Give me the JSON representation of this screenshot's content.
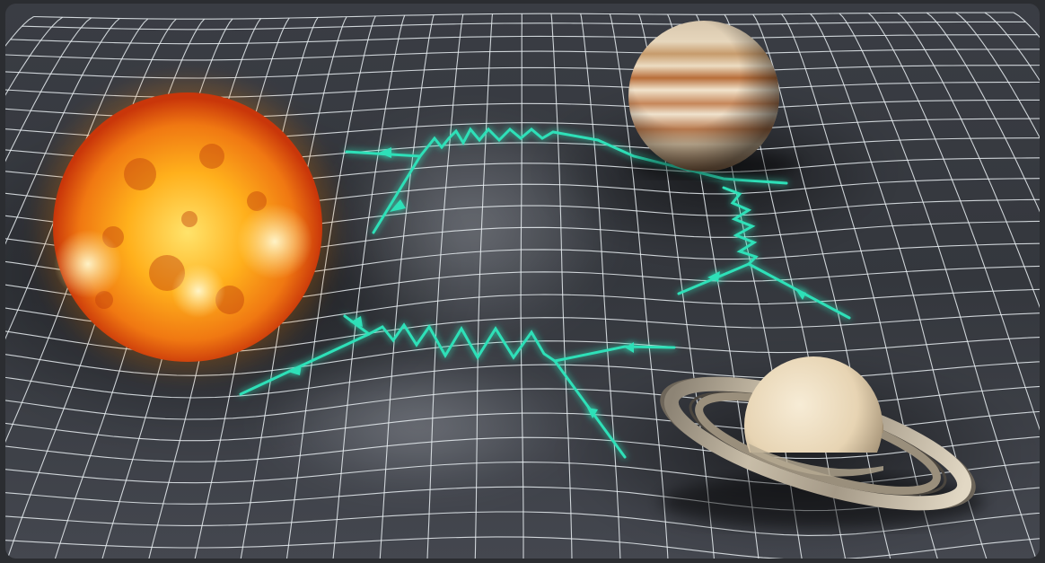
{
  "image": {
    "kind": "illustration",
    "subjects": [
      "sun",
      "jupiter",
      "saturn",
      "spacetime-grid",
      "gravitational-waves"
    ],
    "colors": {
      "background": "#2f3238",
      "grid_line": "#e9eef2",
      "wave": "#2fe0b8",
      "wave_glow": "#1fbf9b",
      "sun_core": "#fff2a8",
      "sun_mid": "#ffb21a",
      "sun_edge": "#d9420a",
      "jupiter_band_light": "#f1e3cc",
      "jupiter_band_dark": "#b8703f",
      "saturn_body": "#eedfc4",
      "saturn_ring": "#a39885"
    }
  }
}
